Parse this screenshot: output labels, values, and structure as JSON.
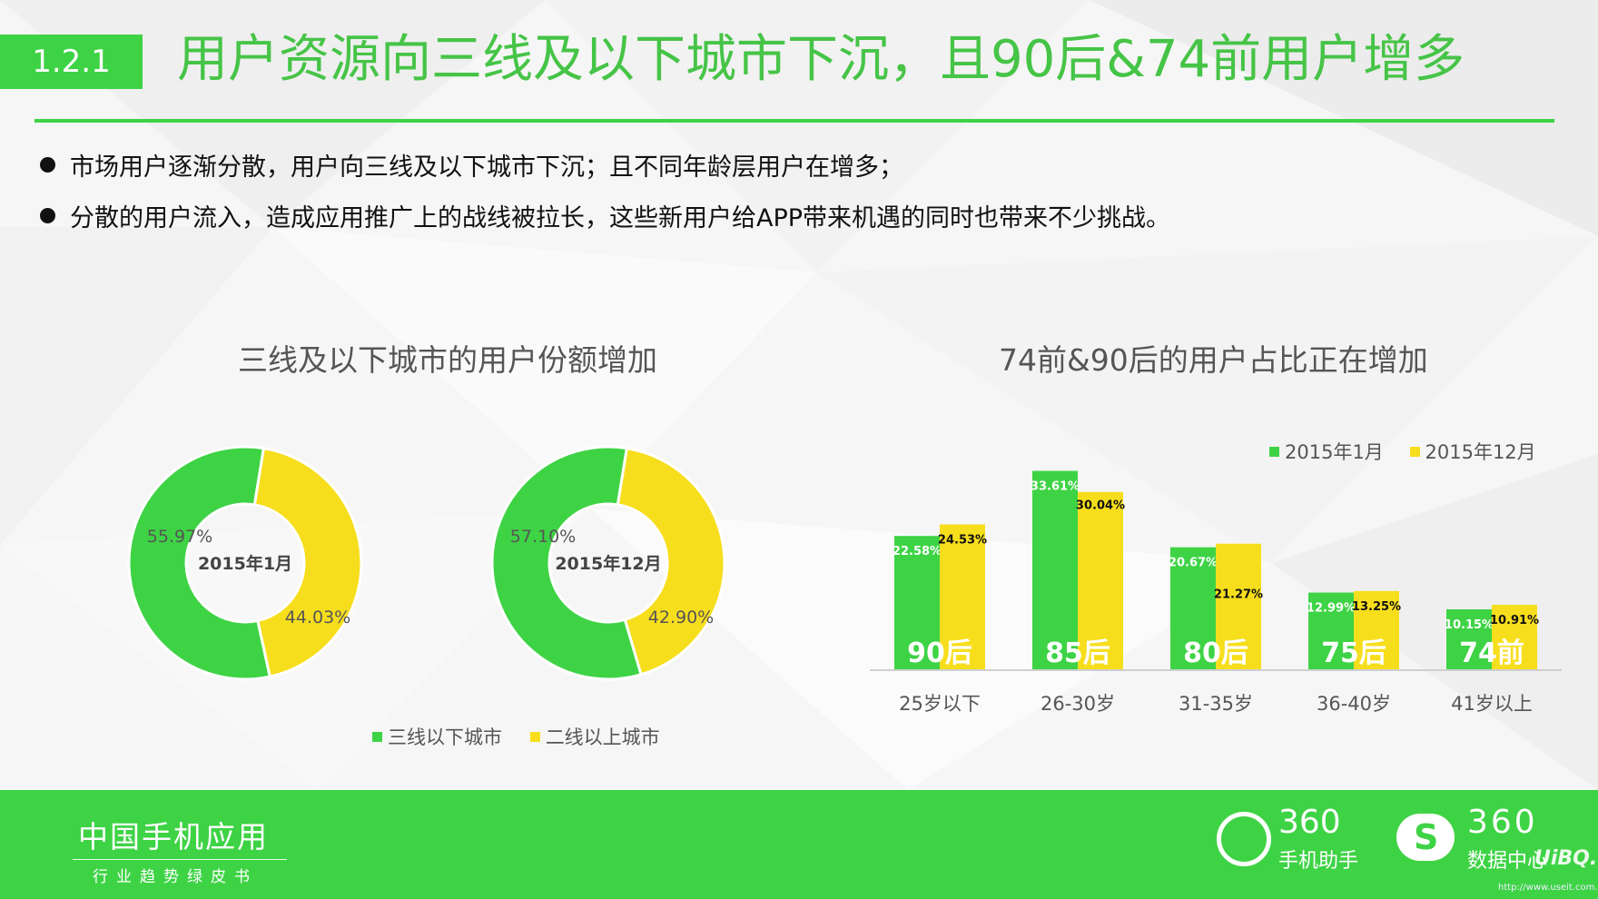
{
  "header": {
    "section_number": "1.2.1",
    "title": "用户资源向三线及以下城市下沉，且90后&74前用户增多"
  },
  "bullets": [
    "市场用户逐渐分散，用户向三线及以下城市下沉；且不同年龄层用户在增多；",
    "分散的用户流入，造成应用推广上的战线被拉长，这些新用户给APP带来机遇的同时也带来不少挑战。"
  ],
  "colors": {
    "green": "#3ed345",
    "yellow": "#f7de1d",
    "title_green": "#46c447"
  },
  "chart_data": [
    {
      "type": "pie",
      "title": "三线及以下城市的用户份额增加",
      "legend": [
        "三线以下城市",
        "二线以上城市"
      ],
      "donuts": [
        {
          "center_label": "2015年1月",
          "values": [
            55.97,
            44.03
          ],
          "labels": [
            "55.97%",
            "44.03%"
          ]
        },
        {
          "center_label": "2015年12月",
          "values": [
            57.1,
            42.9
          ],
          "labels": [
            "57.10%",
            "42.90%"
          ]
        }
      ]
    },
    {
      "type": "bar",
      "title": "74前&90后的用户占比正在增加",
      "categories": [
        "25岁以下",
        "26-30岁",
        "31-35岁",
        "36-40岁",
        "41岁以上"
      ],
      "generation_labels": [
        "90后",
        "85后",
        "80后",
        "75后",
        "74前"
      ],
      "series": [
        {
          "name": "2015年1月",
          "values": [
            22.58,
            33.61,
            20.67,
            12.99,
            10.15
          ],
          "labels": [
            "22.58%",
            "33.61%",
            "20.67%",
            "12.99%",
            "10.15%"
          ]
        },
        {
          "name": "2015年12月",
          "values": [
            24.53,
            30.04,
            21.27,
            13.25,
            10.91
          ],
          "labels": [
            "24.53%",
            "30.04%",
            "21.27%",
            "13.25%",
            "10.91%"
          ]
        }
      ],
      "legend_position": "top-right",
      "grid": false
    }
  ],
  "footer": {
    "brand": "中国手机应用",
    "subtitle": "行业趋势绿皮书",
    "logo1_text": "360",
    "logo1_sub": "手机助手",
    "logo2_text": "360",
    "logo2_sub": "数据中心",
    "watermark": "UiBQ.CoM",
    "watermark_url": "http://www.useit.com.cn"
  }
}
